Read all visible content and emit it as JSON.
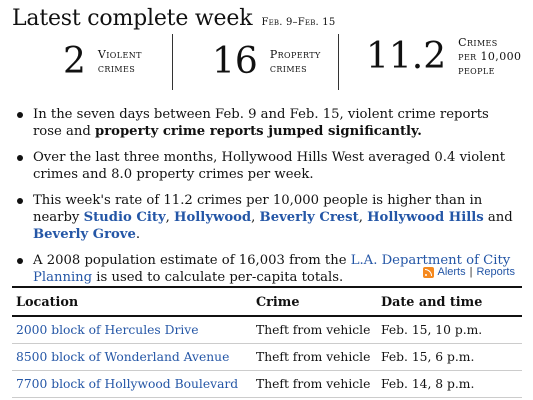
{
  "header": {
    "title": "Latest complete week",
    "dates": "Feb. 9–Feb. 15"
  },
  "stats": [
    {
      "value": "2",
      "label_line1": "Violent",
      "label_line2": "crimes",
      "label_line3": ""
    },
    {
      "value": "16",
      "label_line1": "Property",
      "label_line2": "crimes",
      "label_line3": ""
    },
    {
      "value": "11.2",
      "label_line1": "Crimes",
      "label_line2": "per 10,000",
      "label_line3": "people"
    }
  ],
  "bullets": {
    "b1": {
      "text": "In the seven days between Feb. 9 and Feb. 15, violent crime reports rose and ",
      "bold": "property crime reports jumped significantly."
    },
    "b2": {
      "text": "Over the last three months, Hollywood Hills West averaged 0.4 violent crimes and 8.0 property crimes per week."
    },
    "b3": {
      "pre": "This week's rate of 11.2 crimes per 10,000 people is higher than in nearby ",
      "links": [
        "Studio City",
        "Hollywood",
        "Beverly Crest",
        "Hollywood Hills",
        "Beverly Grove"
      ],
      "sep1": ", ",
      "and": " and ",
      "end": "."
    },
    "b4": {
      "pre": "A 2008 population estimate of 16,003 from the ",
      "link": "L.A. Department of City Planning",
      "post": " is used to calculate per-capita totals."
    }
  },
  "alerts": {
    "icon": "rss-icon",
    "alerts_label": "Alerts",
    "separator": "|",
    "reports_label": "Reports"
  },
  "table": {
    "headers": [
      "Location",
      "Crime",
      "Date and time"
    ],
    "rows": [
      [
        "2000 block of Hercules Drive",
        "Theft from vehicle",
        "Feb. 15, 10 p.m."
      ],
      [
        "8500 block of Wonderland Avenue",
        "Theft from vehicle",
        "Feb. 15, 6 p.m."
      ],
      [
        "7700 block of Hollywood Boulevard",
        "Theft from vehicle",
        "Feb. 14, 8 p.m."
      ]
    ]
  },
  "colors": {
    "link": "#2456a6",
    "rss": "#f5891f"
  }
}
